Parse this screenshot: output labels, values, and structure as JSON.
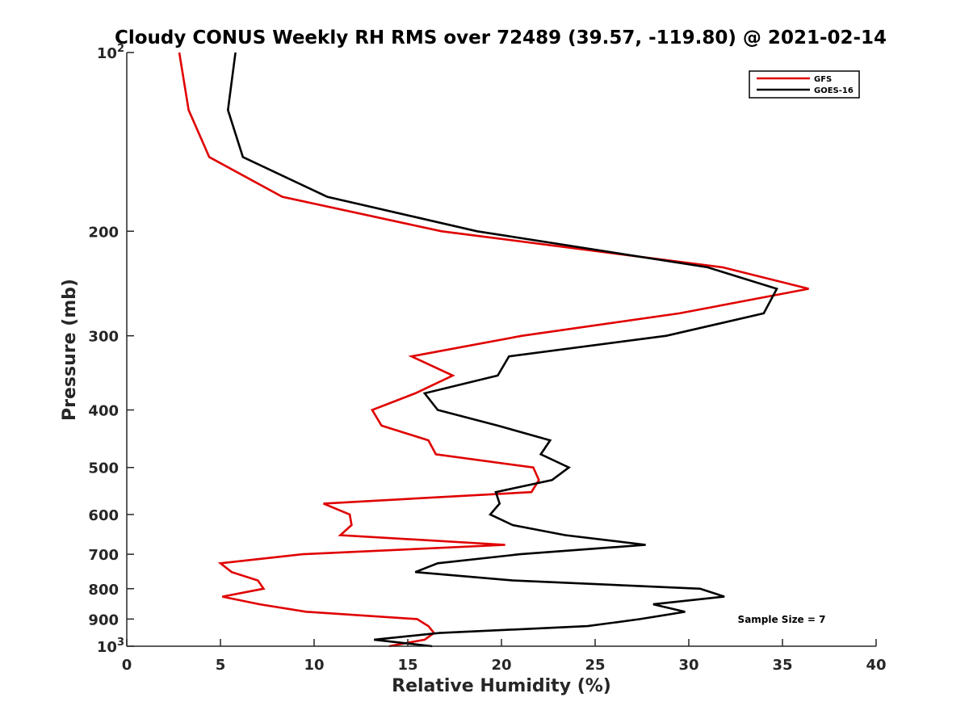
{
  "chart_data": {
    "type": "line",
    "title": "Cloudy CONUS Weekly RH RMS over 72489 (39.57, -119.80) @ 2021-02-14",
    "xlabel": "Relative Humidity (%)",
    "ylabel": "Pressure (mb)",
    "xlim": [
      0,
      40
    ],
    "ylim": [
      100,
      1000
    ],
    "y_scale": "log",
    "y_reversed": true,
    "x_ticks": [
      0,
      5,
      10,
      15,
      20,
      25,
      30,
      35,
      40
    ],
    "x_tick_labels": [
      "0",
      "5",
      "10",
      "15",
      "20",
      "25",
      "30",
      "35",
      "40"
    ],
    "y_ticks": [
      100,
      200,
      300,
      400,
      500,
      600,
      700,
      800,
      900,
      1000
    ],
    "y_tick_labels": [
      {
        "base": "10",
        "exp": "2"
      },
      {
        "base": "200",
        "exp": ""
      },
      {
        "base": "300",
        "exp": ""
      },
      {
        "base": "400",
        "exp": ""
      },
      {
        "base": "500",
        "exp": ""
      },
      {
        "base": "600",
        "exp": ""
      },
      {
        "base": "700",
        "exp": ""
      },
      {
        "base": "800",
        "exp": ""
      },
      {
        "base": "900",
        "exp": ""
      },
      {
        "base": "10",
        "exp": "3"
      }
    ],
    "legend_placement": "top-right",
    "annotation": "Sample Size = 7",
    "series": [
      {
        "name": "GFS",
        "color": "#e00000",
        "points": [
          [
            2.8,
            100
          ],
          [
            3.3,
            125
          ],
          [
            4.4,
            150
          ],
          [
            8.3,
            175
          ],
          [
            16.8,
            200
          ],
          [
            31.8,
            230
          ],
          [
            36.4,
            250
          ],
          [
            29.5,
            275
          ],
          [
            21.1,
            300
          ],
          [
            15.2,
            325
          ],
          [
            17.4,
            350
          ],
          [
            15.4,
            375
          ],
          [
            13.1,
            400
          ],
          [
            13.6,
            425
          ],
          [
            16.1,
            450
          ],
          [
            16.5,
            475
          ],
          [
            21.7,
            500
          ],
          [
            22.0,
            525
          ],
          [
            21.6,
            550
          ],
          [
            10.5,
            575
          ],
          [
            11.9,
            600
          ],
          [
            12.0,
            625
          ],
          [
            11.4,
            650
          ],
          [
            20.2,
            675
          ],
          [
            9.4,
            700
          ],
          [
            5.0,
            725
          ],
          [
            5.6,
            750
          ],
          [
            7.0,
            775
          ],
          [
            7.3,
            800
          ],
          [
            5.1,
            825
          ],
          [
            7.1,
            850
          ],
          [
            9.6,
            875
          ],
          [
            15.5,
            900
          ],
          [
            16.1,
            925
          ],
          [
            16.4,
            950
          ],
          [
            15.9,
            975
          ],
          [
            14.0,
            1000
          ]
        ]
      },
      {
        "name": "GOES-16",
        "color": "#000000",
        "points": [
          [
            5.8,
            100
          ],
          [
            5.4,
            125
          ],
          [
            6.2,
            150
          ],
          [
            10.7,
            175
          ],
          [
            18.7,
            200
          ],
          [
            31.0,
            230
          ],
          [
            34.7,
            250
          ],
          [
            34.0,
            275
          ],
          [
            28.8,
            300
          ],
          [
            20.4,
            325
          ],
          [
            19.8,
            350
          ],
          [
            15.9,
            375
          ],
          [
            16.6,
            400
          ],
          [
            19.8,
            425
          ],
          [
            22.6,
            450
          ],
          [
            22.1,
            475
          ],
          [
            23.6,
            500
          ],
          [
            22.7,
            525
          ],
          [
            19.7,
            550
          ],
          [
            19.9,
            575
          ],
          [
            19.4,
            600
          ],
          [
            20.6,
            625
          ],
          [
            23.4,
            650
          ],
          [
            27.7,
            675
          ],
          [
            21.0,
            700
          ],
          [
            16.6,
            725
          ],
          [
            15.4,
            750
          ],
          [
            20.6,
            775
          ],
          [
            30.6,
            800
          ],
          [
            31.9,
            825
          ],
          [
            28.1,
            850
          ],
          [
            29.8,
            875
          ],
          [
            27.4,
            900
          ],
          [
            24.6,
            925
          ],
          [
            16.7,
            950
          ],
          [
            13.2,
            975
          ],
          [
            16.3,
            1000
          ]
        ]
      }
    ]
  }
}
